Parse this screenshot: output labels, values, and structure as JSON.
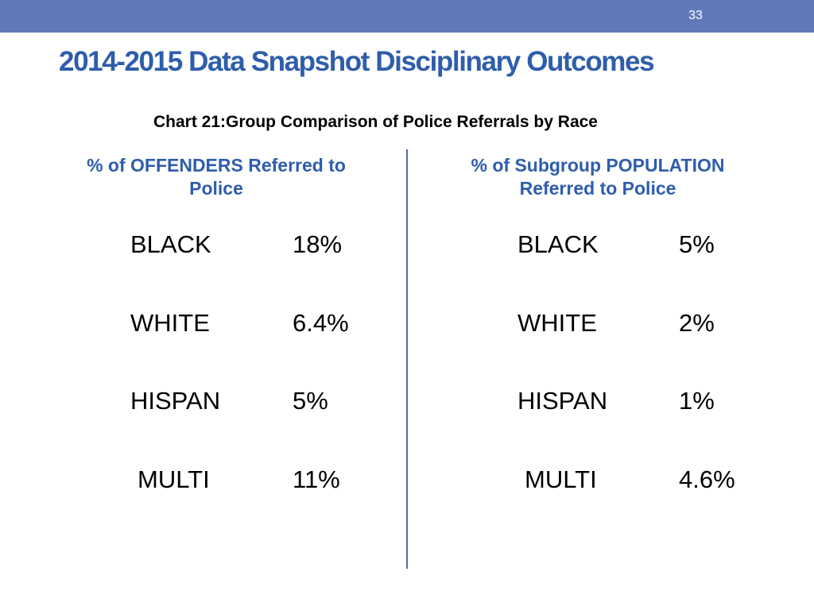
{
  "header": {
    "page_number": "33"
  },
  "title": "2014-2015 Data Snapshot Disciplinary Outcomes",
  "chart_title": "Chart 21:Group Comparison of Police Referrals by Race",
  "left_column": {
    "heading_line1": "% of OFFENDERS Referred to",
    "heading_line2": "Police",
    "rows": [
      {
        "group": "BLACK",
        "value": "18%"
      },
      {
        "group": "WHITE",
        "value": "6.4%"
      },
      {
        "group": "HISPAN",
        "value": "5%"
      },
      {
        "group": "MULTI",
        "value": "11%"
      }
    ]
  },
  "right_column": {
    "heading_line1": "% of Subgroup POPULATION",
    "heading_line2": "Referred to Police",
    "rows": [
      {
        "group": "BLACK",
        "value": "5%"
      },
      {
        "group": "WHITE",
        "value": "2%"
      },
      {
        "group": "HISPAN",
        "value": "1%"
      },
      {
        "group": "MULTI",
        "value": "4.6%"
      }
    ]
  },
  "colors": {
    "top_bar": "#6179b9",
    "title": "#2e5dab",
    "divider": "#4a6fa5"
  }
}
